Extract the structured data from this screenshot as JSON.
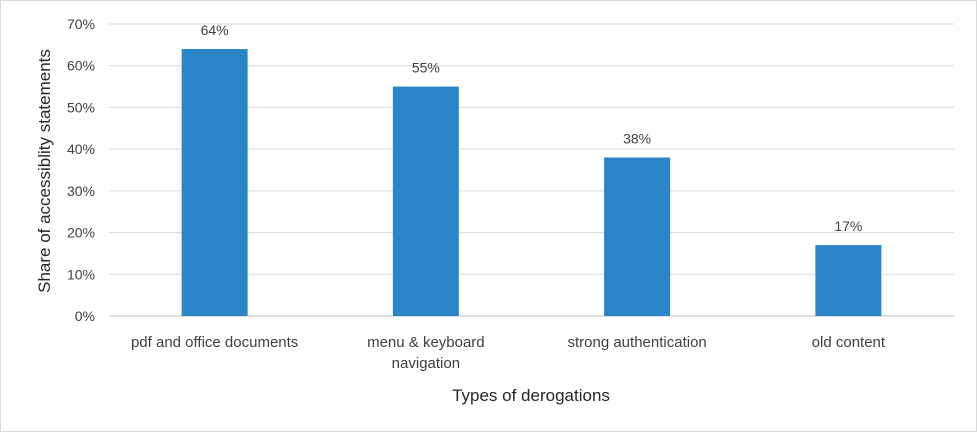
{
  "chart_data": {
    "type": "bar",
    "categories": [
      [
        "pdf and office documents"
      ],
      [
        "menu & keyboard",
        "navigation"
      ],
      [
        "strong authentication"
      ],
      [
        "old content"
      ]
    ],
    "values": [
      64,
      55,
      38,
      17
    ],
    "data_labels": [
      "64%",
      "55%",
      "38%",
      "17%"
    ],
    "xlabel": "Types of derogations",
    "ylabel": "Share of accessiblity statements",
    "ylim": [
      0,
      70
    ],
    "yticks": [
      0,
      10,
      20,
      30,
      40,
      50,
      60,
      70
    ],
    "ytick_labels": [
      "0%",
      "10%",
      "20%",
      "30%",
      "40%",
      "50%",
      "60%",
      "70%"
    ],
    "grid": true,
    "legend": false,
    "colors": {
      "bar": "#2a84c8",
      "grid": "#d9d9d9",
      "axis": "#bfbfbf"
    }
  }
}
